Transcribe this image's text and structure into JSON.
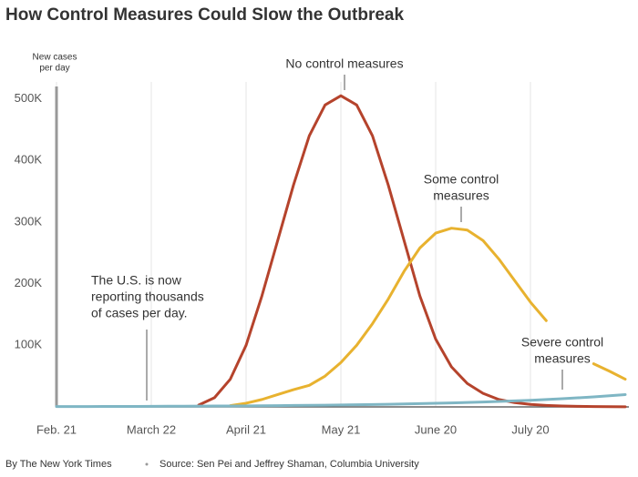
{
  "chart_data": {
    "type": "line",
    "title": "How Control Measures Could Slow the Outbreak",
    "y_axis_label": [
      "New cases",
      "per day"
    ],
    "categories": [
      "Feb. 21",
      null,
      null,
      null,
      null,
      null,
      "March 22",
      null,
      null,
      null,
      null,
      null,
      "April 21",
      null,
      null,
      null,
      null,
      null,
      "May 21",
      null,
      null,
      null,
      null,
      null,
      "June 20",
      null,
      null,
      null,
      null,
      null,
      "July 20",
      null,
      null,
      null,
      null,
      null,
      null
    ],
    "ylim": [
      0,
      520000
    ],
    "yticks": [
      {
        "value": 100000,
        "label": "100K"
      },
      {
        "value": 200000,
        "label": "200K"
      },
      {
        "value": 300000,
        "label": "300K"
      },
      {
        "value": 400000,
        "label": "400K"
      },
      {
        "value": 500000,
        "label": "500K"
      }
    ],
    "grid": true,
    "series": [
      {
        "name": "No control measures",
        "color": "#b5432c",
        "values": [
          null,
          null,
          null,
          null,
          null,
          null,
          null,
          null,
          null,
          3000,
          15000,
          45000,
          100000,
          180000,
          270000,
          360000,
          440000,
          490000,
          505000,
          490000,
          440000,
          360000,
          270000,
          180000,
          110000,
          65000,
          38000,
          22000,
          12000,
          7000,
          4000,
          2500,
          1500,
          1000,
          600,
          400,
          200
        ]
      },
      {
        "name": "Some control measures",
        "color": "#e8b22f",
        "values": [
          null,
          null,
          null,
          null,
          null,
          null,
          null,
          null,
          null,
          null,
          null,
          2000,
          6000,
          12000,
          20000,
          28000,
          35000,
          50000,
          72000,
          100000,
          135000,
          175000,
          220000,
          258000,
          282000,
          290000,
          287000,
          270000,
          240000,
          205000,
          170000,
          140000,
          null,
          null,
          70000,
          58000,
          45000
        ]
      },
      {
        "name": "Severe control measures",
        "color": "#7fb6c4",
        "values": [
          500,
          550,
          610,
          680,
          750,
          830,
          925,
          1020,
          1130,
          1260,
          1390,
          1540,
          1710,
          1890,
          2100,
          2320,
          2570,
          2850,
          3160,
          3500,
          3870,
          4290,
          4750,
          5270,
          5840,
          6470,
          7170,
          7940,
          8800,
          9750,
          10800,
          11970,
          13260,
          14690,
          16280,
          18030,
          20000
        ]
      }
    ],
    "annotations": [
      {
        "lines": [
          "No control measures"
        ]
      },
      {
        "lines": [
          "Some control",
          "measures"
        ]
      },
      {
        "lines": [
          "Severe control",
          "measures"
        ]
      },
      {
        "lines": [
          "The U.S. is now",
          "reporting thousands",
          "of cases per day."
        ]
      }
    ],
    "footer": {
      "credit": "By The New York Times",
      "source": "Source: Sen Pei and Jeffrey Shaman, Columbia University"
    }
  }
}
